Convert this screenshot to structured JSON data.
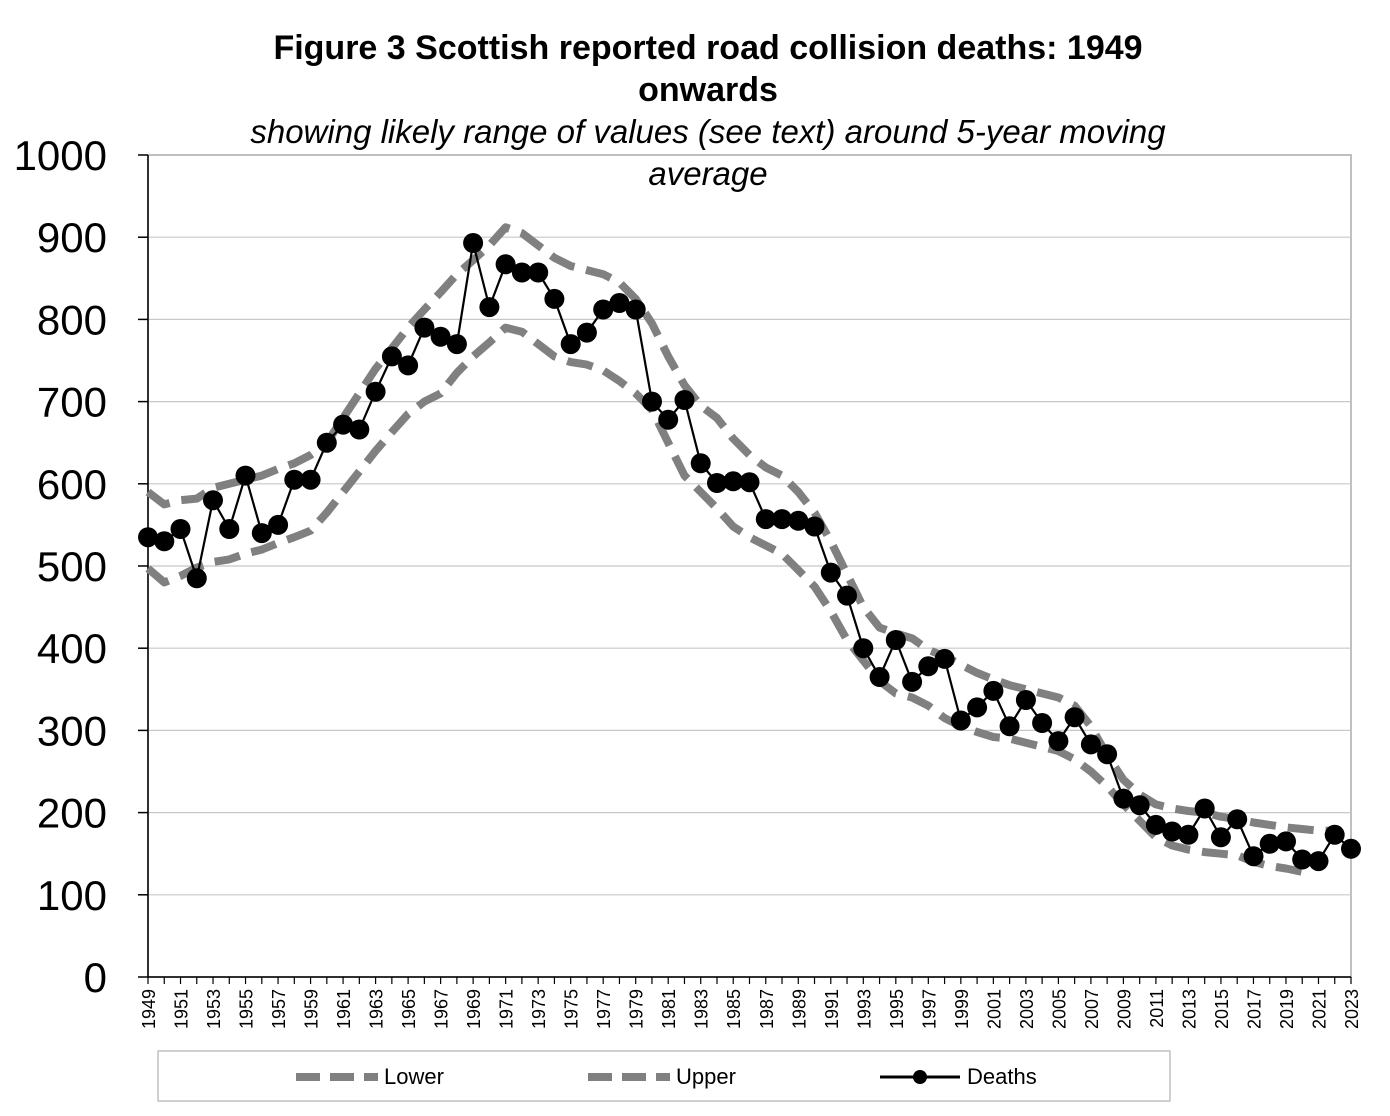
{
  "chart_data": {
    "type": "line",
    "title": "Figure 3 Scottish reported road collision deaths: 1949 onwards",
    "title_lines": [
      "Figure 3 Scottish reported road collision deaths: 1949",
      "onwards"
    ],
    "subtitle": "showing likely range of values (see text) around 5-year moving average",
    "subtitle_lines": [
      "showing likely range of values (see text) around 5-year moving",
      "average"
    ],
    "xlabel": "",
    "ylabel": "",
    "ylim": [
      0,
      1000
    ],
    "yticks": [
      0,
      100,
      200,
      300,
      400,
      500,
      600,
      700,
      800,
      900,
      1000
    ],
    "x": [
      1949,
      1950,
      1951,
      1952,
      1953,
      1954,
      1955,
      1956,
      1957,
      1958,
      1959,
      1960,
      1961,
      1962,
      1963,
      1964,
      1965,
      1966,
      1967,
      1968,
      1969,
      1970,
      1971,
      1972,
      1973,
      1974,
      1975,
      1976,
      1977,
      1978,
      1979,
      1980,
      1981,
      1982,
      1983,
      1984,
      1985,
      1986,
      1987,
      1988,
      1989,
      1990,
      1991,
      1992,
      1993,
      1994,
      1995,
      1996,
      1997,
      1998,
      1999,
      2000,
      2001,
      2002,
      2003,
      2004,
      2005,
      2006,
      2007,
      2008,
      2009,
      2010,
      2011,
      2012,
      2013,
      2014,
      2015,
      2016,
      2017,
      2018,
      2019,
      2020,
      2021,
      2022,
      2023
    ],
    "xtick_labels": [
      "1949",
      "1951",
      "1953",
      "1955",
      "1957",
      "1959",
      "1961",
      "1963",
      "1965",
      "1967",
      "1969",
      "1971",
      "1973",
      "1975",
      "1977",
      "1979",
      "1981",
      "1983",
      "1985",
      "1987",
      "1989",
      "1991",
      "1993",
      "1995",
      "1997",
      "1999",
      "2001",
      "2003",
      "2005",
      "2007",
      "2009",
      "2011",
      "2013",
      "2015",
      "2017",
      "2019",
      "2021",
      "2023"
    ],
    "legend_position": "bottom",
    "grid": true,
    "series": [
      {
        "name": "Lower",
        "style": "dashed",
        "color": "#808080",
        "values": [
          497,
          480,
          488,
          498,
          505,
          508,
          515,
          520,
          528,
          535,
          543,
          565,
          590,
          615,
          640,
          663,
          685,
          700,
          710,
          735,
          755,
          772,
          790,
          785,
          770,
          755,
          748,
          745,
          738,
          725,
          710,
          690,
          650,
          610,
          590,
          570,
          548,
          535,
          525,
          515,
          495,
          475,
          445,
          410,
          385,
          360,
          345,
          340,
          330,
          315,
          305,
          298,
          292,
          290,
          285,
          280,
          275,
          265,
          250,
          232,
          210,
          190,
          170,
          160,
          155,
          152,
          150,
          148,
          140,
          135,
          132,
          128,
          0,
          0,
          0
        ],
        "ends_at": 2020
      },
      {
        "name": "Upper",
        "style": "dashed",
        "color": "#808080",
        "values": [
          590,
          575,
          580,
          582,
          595,
          600,
          605,
          610,
          618,
          625,
          635,
          650,
          680,
          710,
          740,
          765,
          790,
          812,
          833,
          855,
          872,
          890,
          912,
          905,
          890,
          875,
          865,
          860,
          855,
          845,
          825,
          795,
          755,
          720,
          695,
          680,
          655,
          635,
          620,
          610,
          590,
          565,
          530,
          490,
          450,
          425,
          418,
          412,
          398,
          390,
          380,
          370,
          362,
          355,
          350,
          345,
          340,
          330,
          305,
          270,
          240,
          222,
          210,
          205,
          202,
          200,
          195,
          192,
          188,
          185,
          182,
          180,
          178,
          178,
          0
        ],
        "ends_at": 2022
      },
      {
        "name": "Deaths",
        "style": "solid-markers",
        "color": "#000000",
        "values": [
          535,
          530,
          545,
          485,
          580,
          545,
          610,
          540,
          550,
          605,
          605,
          650,
          672,
          666,
          712,
          755,
          744,
          790,
          779,
          770,
          893,
          815,
          867,
          857,
          857,
          825,
          770,
          784,
          812,
          820,
          812,
          700,
          678,
          702,
          625,
          601,
          603,
          602,
          557,
          557,
          555,
          548,
          492,
          464,
          400,
          365,
          410,
          359,
          378,
          387,
          312,
          328,
          348,
          305,
          337,
          309,
          287,
          316,
          283,
          271,
          217,
          209,
          185,
          177,
          173,
          205,
          170,
          192,
          147,
          162,
          165,
          143,
          141,
          173,
          156
        ]
      }
    ]
  }
}
